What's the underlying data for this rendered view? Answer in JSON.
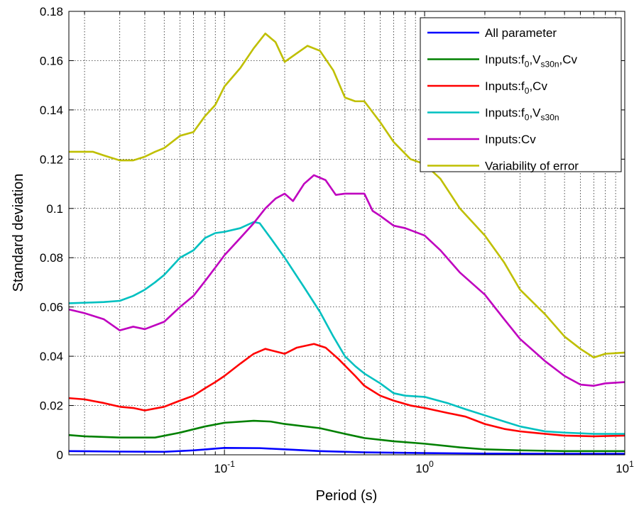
{
  "chart_data": {
    "type": "line",
    "xscale": "log",
    "xlabel": "Period (s)",
    "ylabel": "Standard deviation",
    "xlim": [
      0.0167,
      10
    ],
    "ylim": [
      0,
      0.18
    ],
    "grid": true,
    "legend_position": "top-right",
    "x_tick_labels": [
      {
        "value": 0.1,
        "base": "10",
        "exp": "-1"
      },
      {
        "value": 1,
        "base": "10",
        "exp": "0"
      },
      {
        "value": 10,
        "base": "10",
        "exp": "1"
      }
    ],
    "y_ticks": [
      {
        "value": 0,
        "label": "0"
      },
      {
        "value": 0.02,
        "label": "0.02"
      },
      {
        "value": 0.04,
        "label": "0.04"
      },
      {
        "value": 0.06,
        "label": "0.06"
      },
      {
        "value": 0.08,
        "label": "0.08"
      },
      {
        "value": 0.1,
        "label": "0.1"
      },
      {
        "value": 0.12,
        "label": "0.12"
      },
      {
        "value": 0.14,
        "label": "0.14"
      },
      {
        "value": 0.16,
        "label": "0.16"
      },
      {
        "value": 0.18,
        "label": "0.18"
      }
    ],
    "series": [
      {
        "name": "All parameter",
        "legend_parts": [
          {
            "t": "All parameter"
          }
        ],
        "color": "#0000ff",
        "points": [
          [
            0.0167,
            0.0015
          ],
          [
            0.03,
            0.0013
          ],
          [
            0.05,
            0.0012
          ],
          [
            0.07,
            0.0018
          ],
          [
            0.09,
            0.0025
          ],
          [
            0.1,
            0.0028
          ],
          [
            0.15,
            0.0027
          ],
          [
            0.2,
            0.0022
          ],
          [
            0.3,
            0.0015
          ],
          [
            0.5,
            0.001
          ],
          [
            1,
            0.0007
          ],
          [
            2,
            0.0005
          ],
          [
            5,
            0.0004
          ],
          [
            10,
            0.0004
          ]
        ]
      },
      {
        "name": "Inputs:f0,Vs30n,Cv",
        "legend_parts": [
          {
            "t": "Inputs:f"
          },
          {
            "t": "0",
            "sub": true
          },
          {
            "t": ",V"
          },
          {
            "t": "s30n",
            "sub": true
          },
          {
            "t": ",Cv"
          }
        ],
        "color": "#008000",
        "points": [
          [
            0.0167,
            0.008
          ],
          [
            0.02,
            0.0075
          ],
          [
            0.03,
            0.007
          ],
          [
            0.045,
            0.007
          ],
          [
            0.06,
            0.009
          ],
          [
            0.08,
            0.0115
          ],
          [
            0.1,
            0.013
          ],
          [
            0.14,
            0.0138
          ],
          [
            0.17,
            0.0135
          ],
          [
            0.2,
            0.0125
          ],
          [
            0.3,
            0.0108
          ],
          [
            0.4,
            0.0085
          ],
          [
            0.5,
            0.0068
          ],
          [
            0.7,
            0.0055
          ],
          [
            1,
            0.0045
          ],
          [
            1.5,
            0.003
          ],
          [
            2,
            0.0022
          ],
          [
            3,
            0.0018
          ],
          [
            5,
            0.0015
          ],
          [
            10,
            0.0015
          ]
        ]
      },
      {
        "name": "Inputs:f0,Cv",
        "legend_parts": [
          {
            "t": "Inputs:f"
          },
          {
            "t": "0",
            "sub": true
          },
          {
            "t": ",Cv"
          }
        ],
        "color": "#ff0000",
        "points": [
          [
            0.0167,
            0.023
          ],
          [
            0.02,
            0.0225
          ],
          [
            0.025,
            0.021
          ],
          [
            0.03,
            0.0195
          ],
          [
            0.035,
            0.019
          ],
          [
            0.04,
            0.018
          ],
          [
            0.05,
            0.0195
          ],
          [
            0.06,
            0.022
          ],
          [
            0.07,
            0.024
          ],
          [
            0.08,
            0.027
          ],
          [
            0.09,
            0.0295
          ],
          [
            0.1,
            0.032
          ],
          [
            0.12,
            0.037
          ],
          [
            0.14,
            0.041
          ],
          [
            0.16,
            0.043
          ],
          [
            0.2,
            0.041
          ],
          [
            0.23,
            0.0435
          ],
          [
            0.28,
            0.045
          ],
          [
            0.32,
            0.0435
          ],
          [
            0.37,
            0.039
          ],
          [
            0.45,
            0.032
          ],
          [
            0.5,
            0.028
          ],
          [
            0.6,
            0.024
          ],
          [
            0.7,
            0.022
          ],
          [
            0.85,
            0.02
          ],
          [
            1,
            0.019
          ],
          [
            1.3,
            0.017
          ],
          [
            1.6,
            0.0155
          ],
          [
            2,
            0.0125
          ],
          [
            2.5,
            0.0105
          ],
          [
            3,
            0.0095
          ],
          [
            4,
            0.0085
          ],
          [
            5,
            0.0078
          ],
          [
            7,
            0.0075
          ],
          [
            10,
            0.0078
          ]
        ]
      },
      {
        "name": "Inputs:f0,Vs30n",
        "legend_parts": [
          {
            "t": "Inputs:f"
          },
          {
            "t": "0",
            "sub": true
          },
          {
            "t": ",V"
          },
          {
            "t": "s30n",
            "sub": true
          }
        ],
        "color": "#00c0c0",
        "points": [
          [
            0.0167,
            0.0615
          ],
          [
            0.025,
            0.062
          ],
          [
            0.03,
            0.0625
          ],
          [
            0.035,
            0.0645
          ],
          [
            0.04,
            0.067
          ],
          [
            0.045,
            0.07
          ],
          [
            0.05,
            0.073
          ],
          [
            0.06,
            0.08
          ],
          [
            0.07,
            0.083
          ],
          [
            0.08,
            0.088
          ],
          [
            0.09,
            0.09
          ],
          [
            0.1,
            0.0905
          ],
          [
            0.12,
            0.092
          ],
          [
            0.14,
            0.0945
          ],
          [
            0.15,
            0.094
          ],
          [
            0.17,
            0.088
          ],
          [
            0.2,
            0.08
          ],
          [
            0.25,
            0.068
          ],
          [
            0.3,
            0.058
          ],
          [
            0.35,
            0.048
          ],
          [
            0.4,
            0.04
          ],
          [
            0.45,
            0.036
          ],
          [
            0.5,
            0.033
          ],
          [
            0.6,
            0.029
          ],
          [
            0.7,
            0.025
          ],
          [
            0.8,
            0.024
          ],
          [
            1,
            0.0235
          ],
          [
            1.3,
            0.021
          ],
          [
            1.6,
            0.0185
          ],
          [
            2,
            0.016
          ],
          [
            2.5,
            0.0135
          ],
          [
            3,
            0.0115
          ],
          [
            4,
            0.0095
          ],
          [
            5,
            0.009
          ],
          [
            7,
            0.0085
          ],
          [
            10,
            0.0085
          ]
        ]
      },
      {
        "name": "Inputs:Cv",
        "legend_parts": [
          {
            "t": "Inputs:Cv"
          }
        ],
        "color": "#bf00bf",
        "points": [
          [
            0.0167,
            0.059
          ],
          [
            0.02,
            0.0575
          ],
          [
            0.025,
            0.055
          ],
          [
            0.03,
            0.0505
          ],
          [
            0.035,
            0.052
          ],
          [
            0.04,
            0.051
          ],
          [
            0.05,
            0.054
          ],
          [
            0.06,
            0.06
          ],
          [
            0.07,
            0.0645
          ],
          [
            0.08,
            0.0705
          ],
          [
            0.09,
            0.076
          ],
          [
            0.1,
            0.081
          ],
          [
            0.12,
            0.088
          ],
          [
            0.14,
            0.094
          ],
          [
            0.16,
            0.1
          ],
          [
            0.18,
            0.104
          ],
          [
            0.2,
            0.106
          ],
          [
            0.22,
            0.103
          ],
          [
            0.25,
            0.11
          ],
          [
            0.28,
            0.1135
          ],
          [
            0.32,
            0.1115
          ],
          [
            0.36,
            0.1055
          ],
          [
            0.4,
            0.106
          ],
          [
            0.45,
            0.106
          ],
          [
            0.5,
            0.106
          ],
          [
            0.55,
            0.099
          ],
          [
            0.6,
            0.097
          ],
          [
            0.7,
            0.093
          ],
          [
            0.8,
            0.092
          ],
          [
            1,
            0.089
          ],
          [
            1.2,
            0.083
          ],
          [
            1.5,
            0.074
          ],
          [
            2,
            0.065
          ],
          [
            2.5,
            0.055
          ],
          [
            3,
            0.047
          ],
          [
            4,
            0.038
          ],
          [
            5,
            0.032
          ],
          [
            6,
            0.0285
          ],
          [
            7,
            0.028
          ],
          [
            8,
            0.029
          ],
          [
            10,
            0.0295
          ]
        ]
      },
      {
        "name": "Variability of error",
        "legend_parts": [
          {
            "t": "Variability of error"
          }
        ],
        "color": "#bfbf00",
        "points": [
          [
            0.0167,
            0.123
          ],
          [
            0.022,
            0.123
          ],
          [
            0.025,
            0.1215
          ],
          [
            0.03,
            0.1195
          ],
          [
            0.035,
            0.1195
          ],
          [
            0.04,
            0.121
          ],
          [
            0.045,
            0.123
          ],
          [
            0.05,
            0.1245
          ],
          [
            0.06,
            0.1295
          ],
          [
            0.07,
            0.131
          ],
          [
            0.08,
            0.1375
          ],
          [
            0.09,
            0.142
          ],
          [
            0.1,
            0.1495
          ],
          [
            0.12,
            0.157
          ],
          [
            0.14,
            0.165
          ],
          [
            0.16,
            0.171
          ],
          [
            0.18,
            0.1675
          ],
          [
            0.2,
            0.1595
          ],
          [
            0.23,
            0.163
          ],
          [
            0.26,
            0.166
          ],
          [
            0.3,
            0.164
          ],
          [
            0.35,
            0.156
          ],
          [
            0.4,
            0.145
          ],
          [
            0.45,
            0.1435
          ],
          [
            0.5,
            0.1435
          ],
          [
            0.6,
            0.135
          ],
          [
            0.7,
            0.127
          ],
          [
            0.85,
            0.12
          ],
          [
            1,
            0.118
          ],
          [
            1.2,
            0.112
          ],
          [
            1.5,
            0.1
          ],
          [
            2,
            0.089
          ],
          [
            2.5,
            0.078
          ],
          [
            3,
            0.067
          ],
          [
            4,
            0.057
          ],
          [
            5,
            0.048
          ],
          [
            6,
            0.043
          ],
          [
            7,
            0.0395
          ],
          [
            8,
            0.041
          ],
          [
            10,
            0.0415
          ]
        ]
      }
    ]
  }
}
